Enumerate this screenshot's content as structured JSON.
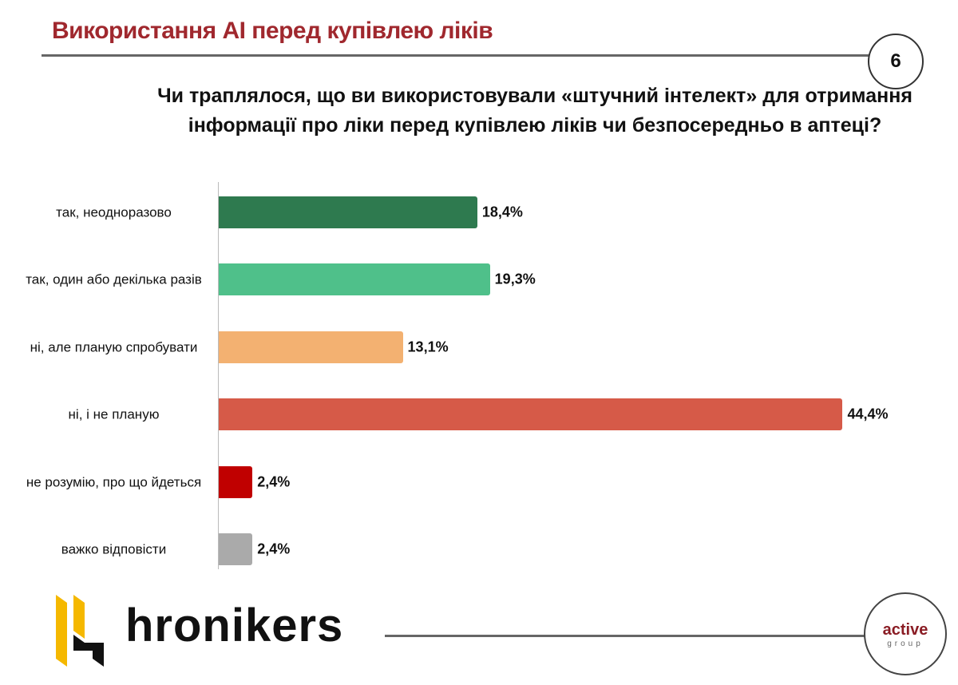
{
  "header": {
    "title": "Використання AI перед купівлею ліків",
    "page_number": "6"
  },
  "chart_data": {
    "type": "bar",
    "orientation": "horizontal",
    "title": "Чи траплялося, що ви використовували «штучний інтелект» для отримання інформації про ліки перед купівлею ліків чи безпосередньо в аптеці?",
    "categories": [
      "так, неодноразово",
      "так, один або декілька разів",
      "ні, але планую спробувати",
      "ні, і не планую",
      "не розумію, про що йдеться",
      "важко відповісти"
    ],
    "values": [
      18.4,
      19.3,
      13.1,
      44.4,
      2.4,
      2.4
    ],
    "value_labels": [
      "18,4%",
      "19,3%",
      "13,1%",
      "44,4%",
      "2,4%",
      "2,4%"
    ],
    "colors": [
      "#2e7a4f",
      "#4fc08a",
      "#f3b171",
      "#d65a48",
      "#c00000",
      "#aaaaaa"
    ],
    "xlabel": "",
    "ylabel": "",
    "xlim": [
      0,
      45
    ],
    "grid": false,
    "legend": "none"
  },
  "footer": {
    "brand": "hronikers",
    "partner_top": "active",
    "partner_bottom": "group"
  }
}
